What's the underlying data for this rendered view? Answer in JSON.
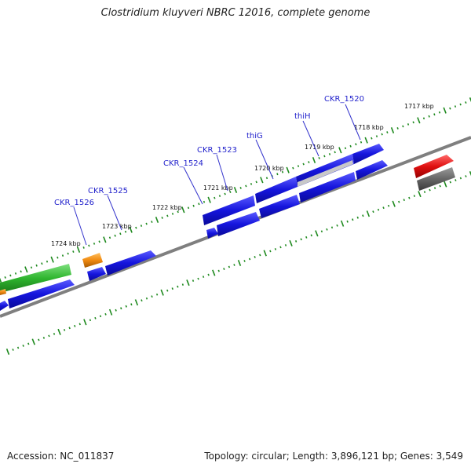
{
  "title": "Clostridium kluyveri NBRC 12016, complete genome",
  "accession": "Accession: NC_011837",
  "stats": "Topology: circular; Length: 3,896,121 bp; Genes: 3,549",
  "ruler_labels": [
    "1717 kbp",
    "1718 kbp",
    "1719 kbp",
    "1720 kbp",
    "1721 kbp",
    "1722 kbp",
    "1723 kbp",
    "1724 kbp"
  ],
  "gene_labels": [
    "CKR_1520",
    "thiH",
    "thiG",
    "CKR_1523",
    "CKR_1524",
    "CKR_1525",
    "CKR_1526"
  ],
  "colors": {
    "cds": "#1515dd",
    "rna_green": "#2fb52f",
    "orange": "#f08a10",
    "red": "#e01010",
    "grey": "#666666",
    "backbone": "#7f7f7f",
    "tick": "#1f8a1f",
    "label": "#2222cc"
  }
}
